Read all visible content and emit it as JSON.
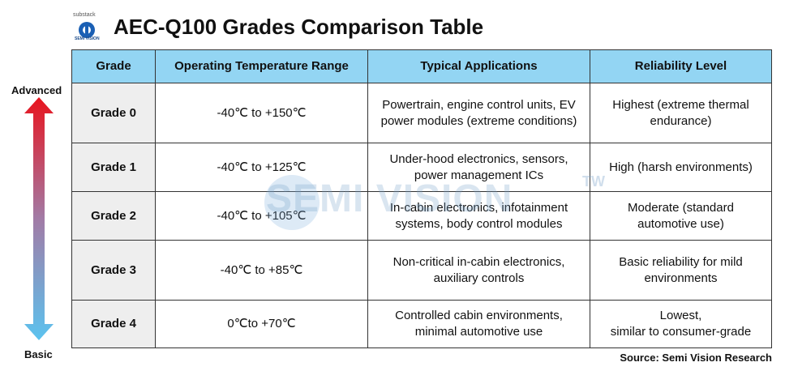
{
  "logo": {
    "brand": "substack",
    "caption": "SEMI VISION"
  },
  "header": {
    "title": "AEC-Q100 Grades Comparison Table"
  },
  "scale": {
    "top": "Advanced",
    "bottom": "Basic"
  },
  "watermark": {
    "text": "SEMI VISION",
    "mark": "TW"
  },
  "table": {
    "columns": [
      "Grade",
      "Operating Temperature Range",
      "Typical Applications",
      "Reliability Level"
    ],
    "rows": [
      [
        "Grade 0",
        "-40℃ to +150℃",
        "Powertrain, engine control units, EV\npower modules (extreme conditions)",
        "Highest (extreme thermal\nendurance)"
      ],
      [
        "Grade 1",
        "-40℃ to +125℃",
        "Under-hood electronics, sensors,\npower management ICs",
        "High (harsh environments)"
      ],
      [
        "Grade 2",
        "-40℃ to +105℃",
        "In-cabin electronics, infotainment\nsystems, body control modules",
        "Moderate (standard\nautomotive use)"
      ],
      [
        "Grade 3",
        "-40℃ to +85℃",
        "Non-critical in-cabin electronics,\nauxiliary controls",
        "Basic reliability for mild\nenvironments"
      ],
      [
        "Grade 4",
        "0℃to +70℃",
        "Controlled cabin environments,\nminimal automotive use",
        "Lowest,\nsimilar to consumer-grade"
      ]
    ]
  },
  "source": "Source: Semi Vision Research"
}
